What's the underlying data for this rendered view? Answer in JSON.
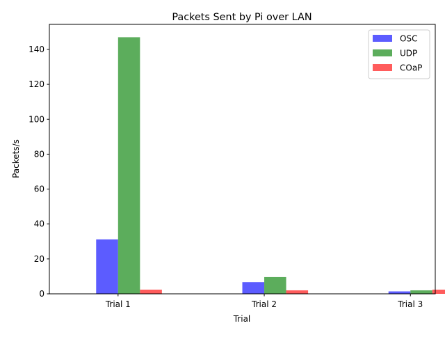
{
  "chart_data": {
    "type": "bar",
    "title": "Packets Sent by Pi over LAN",
    "xlabel": "Trial",
    "ylabel": "Packets/s",
    "categories": [
      "Trial 1",
      "Trial 2",
      "Trial 3"
    ],
    "series": [
      {
        "name": "OSC",
        "color": "#3333ff",
        "values": [
          31.2,
          6.7,
          1.4
        ]
      },
      {
        "name": "UDP",
        "color": "#339933",
        "values": [
          147.0,
          9.6,
          2.0
        ]
      },
      {
        "name": "COaP",
        "color": "#ff3333",
        "values": [
          2.4,
          2.0,
          2.4
        ]
      }
    ],
    "ylim": [
      0,
      154.35
    ],
    "yticks": [
      0,
      20,
      40,
      60,
      80,
      100,
      120,
      140
    ],
    "grid": false,
    "legend_position": "upper right"
  }
}
